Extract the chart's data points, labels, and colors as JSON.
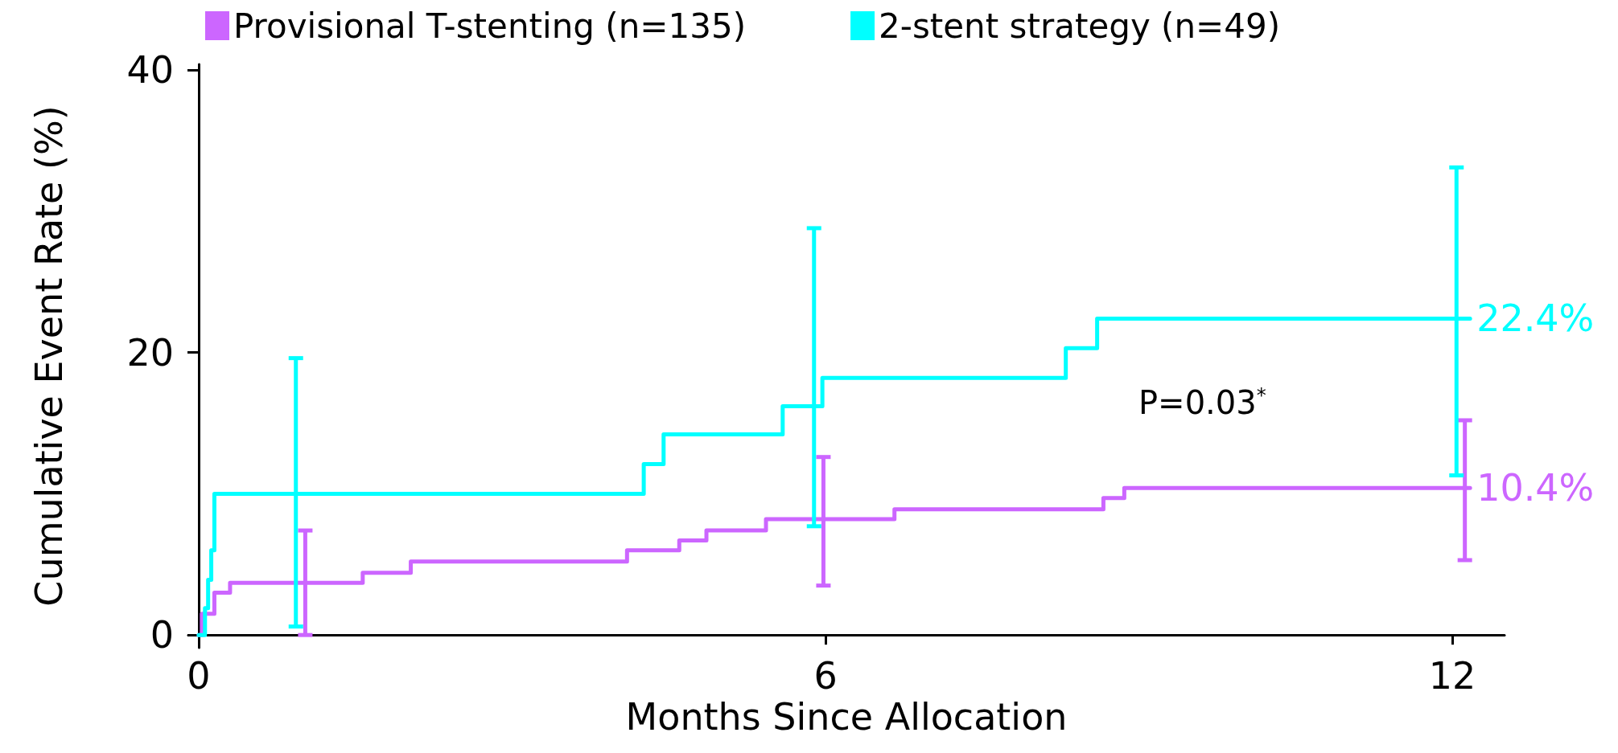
{
  "chart_data": {
    "type": "step",
    "xlabel": "Months Since Allocation",
    "ylabel": "Cumulative Event Rate (%)",
    "legend": "top left",
    "annotations": [
      "P=0.03$^{*}$"
    ],
    "xlim": [
      -0.1,
      12.5
    ],
    "ylim": [
      -0.9,
      40.4
    ],
    "xticks": [
      0,
      6,
      12
    ],
    "yticks": [
      0,
      20,
      40
    ],
    "grid": false,
    "marker": "none",
    "line_style": "solid",
    "series": [
      {
        "name": "Provisional T-stenting (n=135)",
        "color": "#cc66ff",
        "x": [
          0,
          0.03,
          0.15,
          0.3,
          1.02,
          1.57,
          2.03,
          4.1,
          4.6,
          4.86,
          5.43,
          5.98,
          6.66,
          8.66,
          8.86,
          12.12,
          12.17
        ],
        "values": [
          0,
          1.5,
          3.0,
          3.7,
          3.7,
          4.4,
          5.2,
          6.0,
          6.7,
          7.4,
          8.2,
          8.2,
          8.9,
          9.7,
          10.4,
          10.4,
          10.4
        ],
        "errors": [
          null,
          null,
          null,
          null,
          [
            0,
            7.4
          ],
          null,
          null,
          null,
          null,
          null,
          null,
          [
            3.5,
            12.6
          ],
          null,
          null,
          null,
          [
            5.3,
            15.2
          ],
          null
        ],
        "value_labels": [
          null,
          null,
          null,
          null,
          null,
          null,
          null,
          null,
          null,
          null,
          null,
          null,
          null,
          null,
          null,
          null,
          "10.4%"
        ]
      },
      {
        "name": "2-stent strategy (n=49)",
        "color": "#00ffff",
        "x": [
          0,
          0.06,
          0.09,
          0.12,
          0.15,
          0.93,
          4.26,
          4.45,
          5.59,
          5.89,
          5.97,
          8.3,
          8.6,
          12.04,
          12.17
        ],
        "values": [
          0,
          1.9,
          3.9,
          6.0,
          10.0,
          10.0,
          12.1,
          14.2,
          16.2,
          16.2,
          18.2,
          20.3,
          22.4,
          22.4,
          22.4
        ],
        "errors": [
          null,
          null,
          null,
          null,
          null,
          [
            0.6,
            19.6
          ],
          null,
          null,
          null,
          [
            7.7,
            28.8
          ],
          null,
          null,
          null,
          [
            11.3,
            33.1
          ],
          null
        ],
        "value_labels": [
          null,
          null,
          null,
          null,
          null,
          null,
          null,
          null,
          null,
          null,
          null,
          null,
          null,
          null,
          "22.4%"
        ]
      }
    ]
  }
}
